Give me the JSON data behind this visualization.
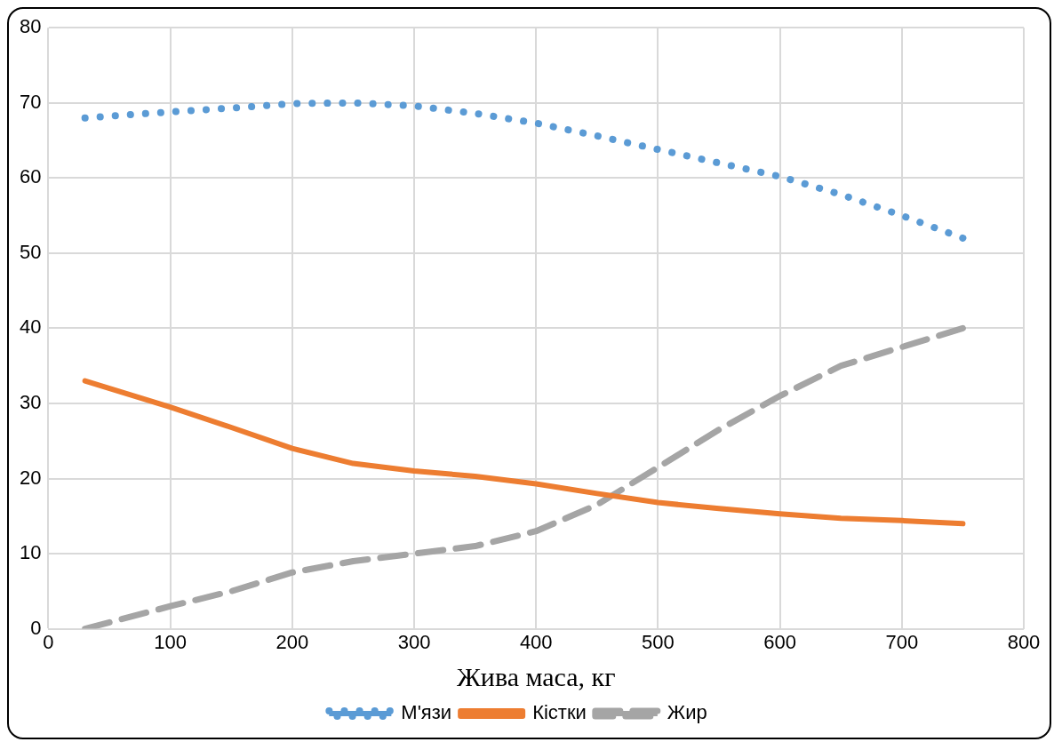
{
  "chart_data": {
    "type": "line",
    "xlabel": "Жива маса, кг",
    "xlim": [
      0,
      800
    ],
    "xticks": [
      0,
      100,
      200,
      300,
      400,
      500,
      600,
      700,
      800
    ],
    "ylim": [
      0,
      80
    ],
    "yticks": [
      0,
      10,
      20,
      30,
      40,
      50,
      60,
      70,
      80
    ],
    "grid": true,
    "legend": "bottom",
    "marker": "none",
    "x": [
      30,
      100,
      150,
      200,
      250,
      300,
      350,
      400,
      450,
      500,
      550,
      600,
      650,
      700,
      750
    ],
    "series": [
      {
        "name": "М'язи",
        "color": "#5b9bd5",
        "line_style": "dotted",
        "values": [
          68,
          68.8,
          69.3,
          69.9,
          70,
          69.6,
          68.6,
          67.3,
          65.6,
          63.8,
          62,
          60.2,
          57.8,
          55,
          52
        ]
      },
      {
        "name": "Кістки",
        "color": "#ed7d31",
        "line_style": "solid",
        "values": [
          33,
          29.5,
          26.8,
          24,
          22,
          21,
          20.3,
          19.3,
          18,
          16.8,
          16,
          15.3,
          14.7,
          14.4,
          14
        ]
      },
      {
        "name": "Жир",
        "color": "#a5a5a5",
        "line_style": "dashed",
        "values": [
          0,
          3,
          5,
          7.5,
          9,
          10,
          11,
          13,
          16.5,
          21.5,
          26.5,
          31,
          35,
          37.5,
          40
        ]
      }
    ]
  }
}
